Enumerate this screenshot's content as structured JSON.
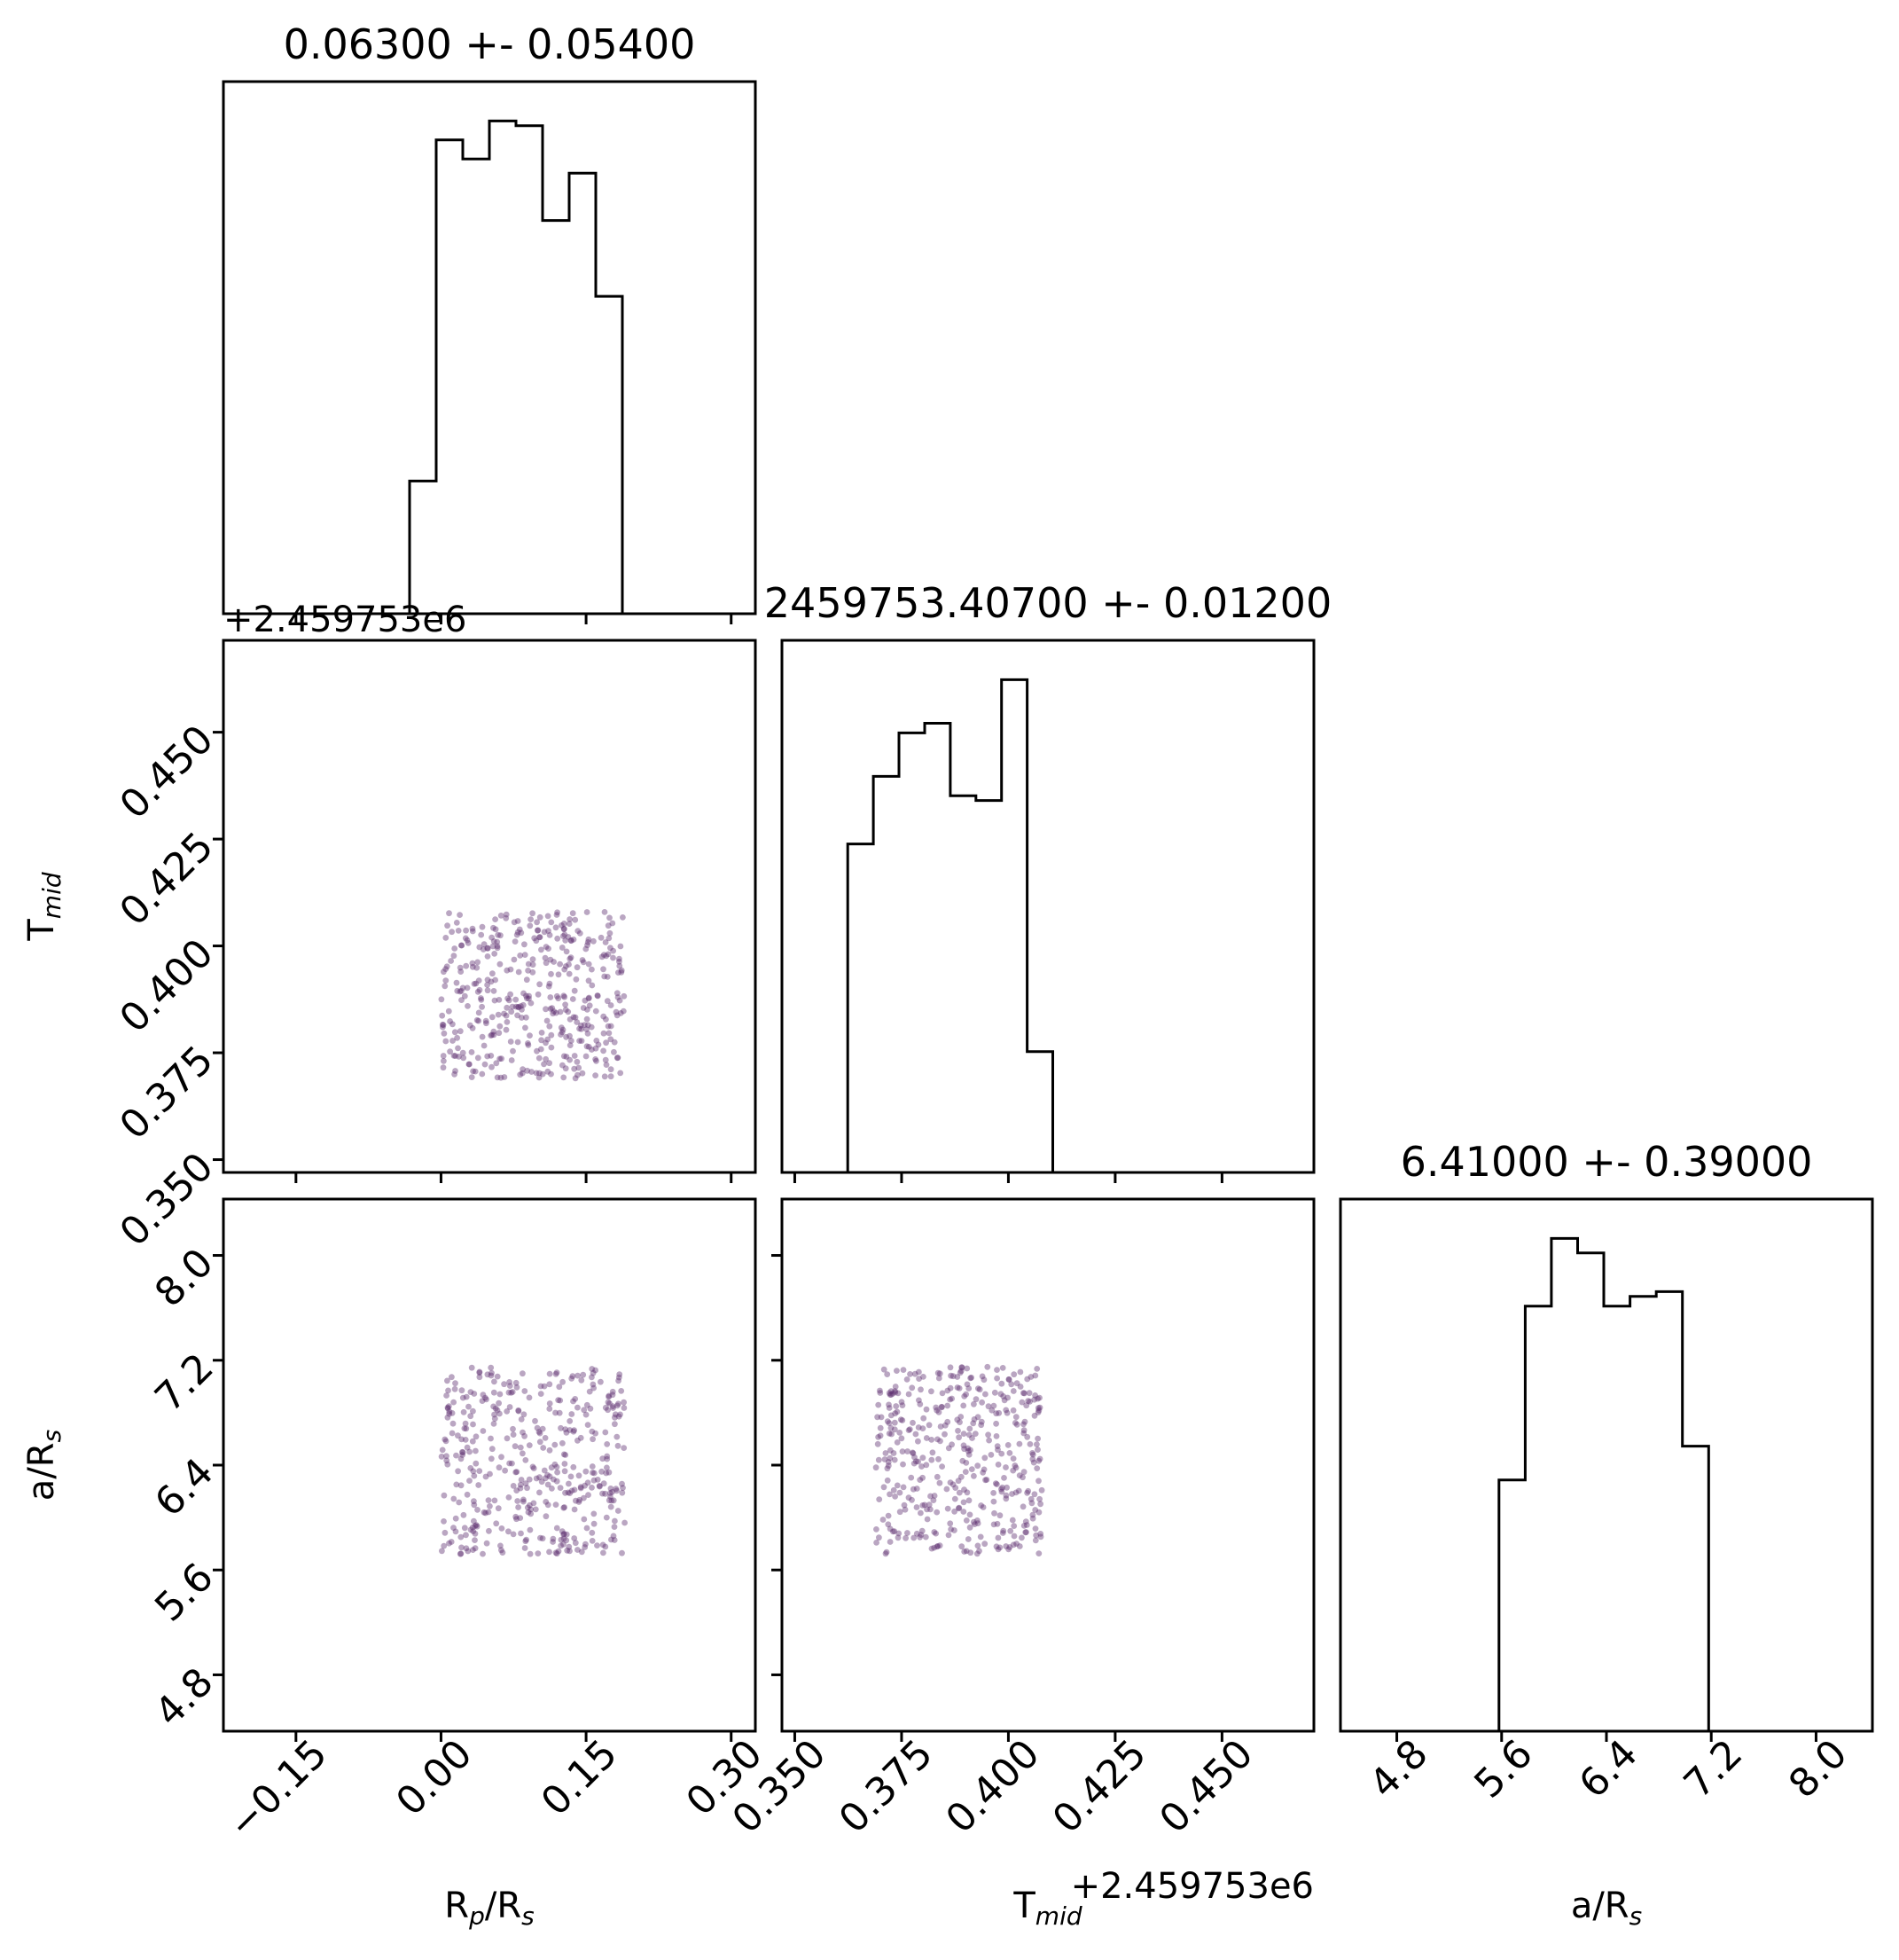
{
  "chart_data": {
    "type": "corner",
    "parameters": [
      {
        "key": "rp",
        "label_main": "R",
        "label_sub": "p",
        "label_tail": "/R",
        "label_sub2": "s"
      },
      {
        "key": "tmid",
        "label_main": "T",
        "label_sub": "mid",
        "label_tail": "",
        "label_sub2": ""
      },
      {
        "key": "ars",
        "label_main": "a/R",
        "label_sub": "s",
        "label_tail": "",
        "label_sub2": ""
      }
    ],
    "titles": [
      "0.06300 +- 0.05400",
      "2459753.40700 +- 0.01200",
      "6.41000 +- 0.39000"
    ],
    "axis_offset_text": "+2.459753e6",
    "ranges": {
      "rp": [
        -0.225,
        0.325
      ],
      "tmid": [
        0.347,
        0.4715
      ],
      "ars": [
        4.37,
        8.43
      ]
    },
    "ticks": {
      "rp": [
        "-0.15",
        "0.00",
        "0.15",
        "0.30"
      ],
      "tmid": [
        "0.350",
        "0.375",
        "0.400",
        "0.425",
        "0.450"
      ],
      "ars": [
        "4.8",
        "5.6",
        "6.4",
        "7.2",
        "8.0"
      ]
    },
    "tick_values": {
      "rp": [
        -0.15,
        0.0,
        0.15,
        0.3
      ],
      "tmid": [
        0.35,
        0.375,
        0.4,
        0.425,
        0.45
      ],
      "ars": [
        4.8,
        5.6,
        6.4,
        7.2,
        8.0
      ]
    },
    "histograms": {
      "rp": {
        "edges": [
          -0.225,
          -0.0325,
          -0.005,
          0.0225,
          0.05,
          0.0775,
          0.105,
          0.1325,
          0.16,
          0.1875,
          0.325
        ],
        "counts": [
          0,
          28,
          100,
          96,
          104,
          103,
          83,
          93,
          67,
          0
        ]
      },
      "tmid": {
        "edges": [
          0.347,
          0.3624,
          0.3684,
          0.3744,
          0.3804,
          0.3864,
          0.3924,
          0.3984,
          0.4044,
          0.4104,
          0.4715
        ],
        "counts": [
          0,
          68,
          82,
          91,
          93,
          78,
          77,
          102,
          25,
          0
        ]
      },
      "ars": {
        "edges": [
          4.37,
          5.58,
          5.78,
          5.98,
          6.18,
          6.38,
          6.58,
          6.78,
          6.98,
          7.18,
          8.43
        ],
        "counts": [
          0,
          52,
          88,
          102,
          99,
          88,
          90,
          91,
          59,
          0
        ]
      }
    },
    "scatter_boxes": {
      "rp_vs_tmid": {
        "x": [
          0.0,
          0.19
        ],
        "y": [
          0.369,
          0.408
        ]
      },
      "rp_vs_ars": {
        "x": [
          0.0,
          0.19
        ],
        "y": [
          5.72,
          7.15
        ]
      },
      "tmid_vs_ars": {
        "x": [
          0.369,
          0.408
        ],
        "y": [
          5.72,
          7.15
        ]
      }
    },
    "scatter_points_per_panel": 420,
    "point_color": "#5b2a6e",
    "line_color": "#000000",
    "grid": false,
    "legend": "none"
  }
}
